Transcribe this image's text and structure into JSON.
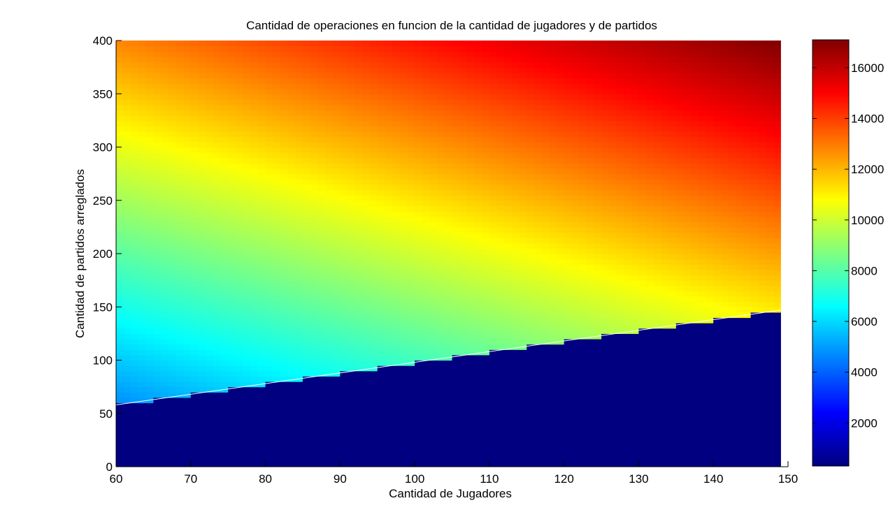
{
  "chart_data": {
    "type": "heatmap",
    "title": "Cantidad de operaciones en funcion de la cantidad de jugadores y de partidos",
    "xlabel": "Cantidad de Jugadores",
    "ylabel": "Cantidad de partidos arreglados",
    "xlim": [
      60,
      150
    ],
    "ylim": [
      0,
      400
    ],
    "x_range_data": [
      60,
      149
    ],
    "x_ticks": [
      "60",
      "70",
      "80",
      "90",
      "100",
      "110",
      "120",
      "130",
      "140",
      "150"
    ],
    "y_ticks": [
      "0",
      "50",
      "100",
      "150",
      "200",
      "250",
      "300",
      "350",
      "400"
    ],
    "colorbar": {
      "colormap": "jet",
      "clim": [
        300,
        17100
      ],
      "ticks": [
        "2000",
        "4000",
        "6000",
        "8000",
        "10000",
        "12000",
        "14000",
        "16000"
      ],
      "placement": "right"
    },
    "surface": {
      "description_formula": "value = 50 * x + 25 * y (approx.) where y > boundary(x), else minimum",
      "boundary": {
        "x": [
          60,
          149
        ],
        "y": [
          58,
          147
        ]
      },
      "sample_points": [
        {
          "x": 60,
          "y": 60,
          "value": 4500
        },
        {
          "x": 60,
          "y": 400,
          "value": 12800
        },
        {
          "x": 149,
          "y": 150,
          "value": 11200
        },
        {
          "x": 149,
          "y": 400,
          "value": 17100
        }
      ],
      "below_boundary_value": 300
    },
    "grid": false
  }
}
